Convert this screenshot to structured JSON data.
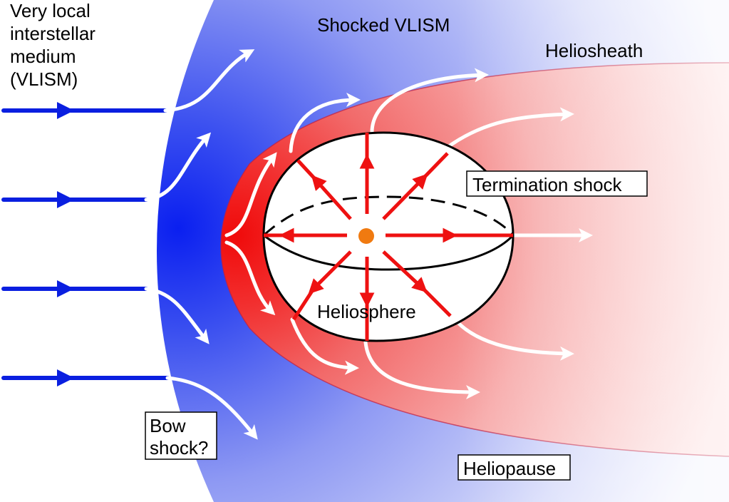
{
  "labels": {
    "vlism_line1": "Very local",
    "vlism_line2": "interstellar",
    "vlism_line3": "medium",
    "vlism_line4": "(VLISM)",
    "shocked_vlism": "Shocked VLISM",
    "heliosheath": "Heliosheath",
    "termination_shock": "Termination shock",
    "heliosphere": "Heliosphere",
    "bow_shock_line1": "Bow",
    "bow_shock_line2": "shock?",
    "heliopause": "Heliopause"
  },
  "colors": {
    "interstellar_flow": "#0a1fe0",
    "shocked_vlism": "#1f3df0",
    "heliosheath": "#f01a1a",
    "solar_wind": "#ee1111",
    "flow_arrows": "#ffffff",
    "sun": "#f07a10"
  },
  "icons": {
    "sun": "sun-icon"
  }
}
